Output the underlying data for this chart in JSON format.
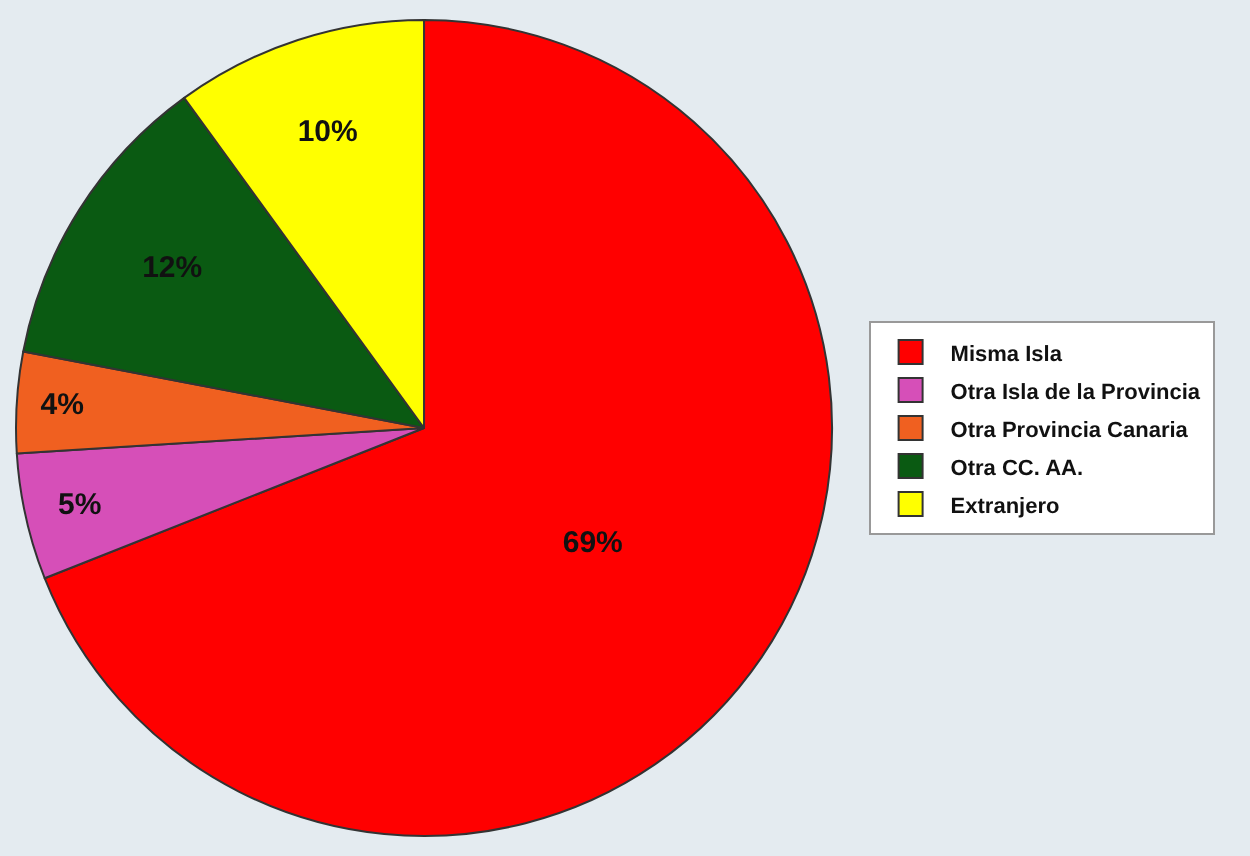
{
  "chart_data": {
    "type": "pie",
    "categories": [
      "Misma Isla",
      "Otra Isla de la Provincia",
      "Otra Provincia Canaria",
      "Otra CC. AA.",
      "Extranjero"
    ],
    "values": [
      69,
      5,
      4,
      12,
      10
    ],
    "value_labels": [
      "69%",
      "5%",
      "4%",
      "12%",
      "10%"
    ],
    "colors": [
      "#ff0000",
      "#d64fb8",
      "#f06020",
      "#0a5a12",
      "#ffff00"
    ],
    "legend": "right"
  }
}
